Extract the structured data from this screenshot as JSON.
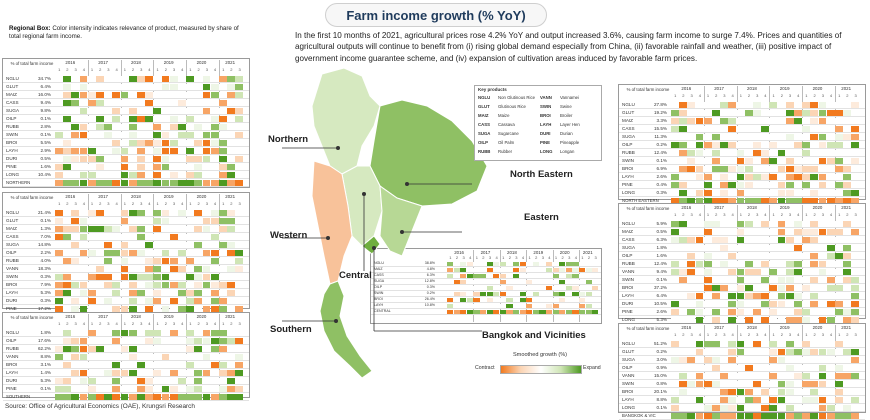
{
  "title": "Farm income growth (% YoY)",
  "intro": "In the first 10 months of 2021, agricultural prices rose 4.2% YoY and output increased 3.6%, causing farm income to surge 7.4%. Prices and quantities of agricultural outputs will continue to benefit from (i) rising global demand especially from China, (ii) favorable rainfall and weather, (iii) positive impact of government income guarantee scheme, and (iv) expansion of cultivation areas induced by favorable farm prices.",
  "regional_box_label": "Regional Box:",
  "regional_box_text": "Color intensity indicates relevance of product, measured by share of total regional farm income.",
  "share_header": "% of total farm income",
  "source": "Source: Office of Agricultural Economics (OAE), Krungsri Research",
  "years": [
    "2016",
    "2017",
    "2018",
    "2019",
    "2020",
    "2021"
  ],
  "quarters": [
    "1",
    "2",
    "3",
    "4",
    "1",
    "2",
    "3",
    "4",
    "1",
    "2",
    "3",
    "4",
    "1",
    "2",
    "3",
    "4",
    "1",
    "2",
    "3",
    "4",
    "1",
    "2",
    "3"
  ],
  "key_products": {
    "title": "Key products",
    "items": [
      {
        "code": "NGLU",
        "name": "Non Glutinous Rice"
      },
      {
        "code": "GLUT",
        "name": "Glutinous Rice"
      },
      {
        "code": "MAIZ",
        "name": "Maize"
      },
      {
        "code": "CASS",
        "name": "Cassava"
      },
      {
        "code": "SUGA",
        "name": "Sugarcane"
      },
      {
        "code": "OILP",
        "name": "Oil Palm"
      },
      {
        "code": "RUBB",
        "name": "Rubber"
      },
      {
        "code": "VANN",
        "name": "Vannamei"
      },
      {
        "code": "SWIN",
        "name": "Swine"
      },
      {
        "code": "BROI",
        "name": "Broiler"
      },
      {
        "code": "LAYH",
        "name": "Layer Hen"
      },
      {
        "code": "DURI",
        "name": "Durian"
      },
      {
        "code": "PINE",
        "name": "Pineapple"
      },
      {
        "code": "LONG",
        "name": "Longan"
      }
    ]
  },
  "map_labels": {
    "northern": "Northern",
    "western": "Western",
    "southern": "Southern",
    "central": "Central",
    "north_eastern": "North Eastern",
    "eastern": "Eastern",
    "bangkok": "Bangkok and Vicinities"
  },
  "scale": {
    "title": "Smoothed growth (%)",
    "contract": "Contract",
    "expand": "Expand"
  },
  "colors": {
    "expand_strong": "#4e9a22",
    "expand_light": "#cfe5b5",
    "contract_strong": "#f27a1f",
    "contract_light": "#fbd5b5",
    "map_selected": "#f8c29a",
    "map_green": "#8fc064",
    "map_light": "#d6e9c0"
  },
  "chart_data": [
    {
      "type": "heatmap",
      "region": "NORTHERN",
      "rows": [
        {
          "code": "NGLU",
          "share": "34.7%"
        },
        {
          "code": "GLUT",
          "share": "6.4%"
        },
        {
          "code": "MAIZ",
          "share": "16.0%"
        },
        {
          "code": "CASS",
          "share": "9.4%"
        },
        {
          "code": "SUGA",
          "share": "9.8%"
        },
        {
          "code": "OILP",
          "share": "0.1%"
        },
        {
          "code": "RUBB",
          "share": "2.8%"
        },
        {
          "code": "SWIN",
          "share": "0.1%"
        },
        {
          "code": "BROI",
          "share": "5.5%"
        },
        {
          "code": "LAYH",
          "share": "2.9%"
        },
        {
          "code": "DURI",
          "share": "0.5%"
        },
        {
          "code": "PINE",
          "share": "1.6%"
        },
        {
          "code": "LONG",
          "share": "10.4%"
        },
        {
          "code": "NORTHERN",
          "share": ""
        }
      ]
    },
    {
      "type": "heatmap",
      "region": "WESTERN",
      "rows": [
        {
          "code": "NGLU",
          "share": "21.4%"
        },
        {
          "code": "GLUT",
          "share": "0.1%"
        },
        {
          "code": "MAIZ",
          "share": "1.3%"
        },
        {
          "code": "CASS",
          "share": "7.0%"
        },
        {
          "code": "SUGA",
          "share": "14.8%"
        },
        {
          "code": "OILP",
          "share": "2.2%"
        },
        {
          "code": "RUBB",
          "share": "4.0%"
        },
        {
          "code": "VANN",
          "share": "18.3%"
        },
        {
          "code": "SWIN",
          "share": "0.3%"
        },
        {
          "code": "BROI",
          "share": "7.9%"
        },
        {
          "code": "LAYH",
          "share": "5.3%"
        },
        {
          "code": "DURI",
          "share": "0.3%"
        },
        {
          "code": "PINE",
          "share": "17.2%"
        },
        {
          "code": "WESTERN",
          "share": ""
        }
      ]
    },
    {
      "type": "heatmap",
      "region": "SOUTHERN",
      "rows": [
        {
          "code": "NGLU",
          "share": "1.8%"
        },
        {
          "code": "OILP",
          "share": "17.6%"
        },
        {
          "code": "RUBB",
          "share": "62.2%"
        },
        {
          "code": "VANN",
          "share": "8.8%"
        },
        {
          "code": "BROI",
          "share": "3.1%"
        },
        {
          "code": "LAYH",
          "share": "1.4%"
        },
        {
          "code": "DURI",
          "share": "5.3%"
        },
        {
          "code": "PINE",
          "share": "0.1%"
        },
        {
          "code": "SOUTHERN",
          "share": ""
        }
      ]
    },
    {
      "type": "heatmap",
      "region": "CENTRAL",
      "rows": [
        {
          "code": "NGLU",
          "share": "38.8%"
        },
        {
          "code": "MAIZ",
          "share": "4.8%"
        },
        {
          "code": "CASS",
          "share": "6.3%"
        },
        {
          "code": "SUGA",
          "share": "12.8%"
        },
        {
          "code": "OILP",
          "share": "0.3%"
        },
        {
          "code": "SWIN",
          "share": "0.2%"
        },
        {
          "code": "BROI",
          "share": "26.4%"
        },
        {
          "code": "LAYH",
          "share": "10.8%"
        },
        {
          "code": "CENTRAL",
          "share": ""
        }
      ]
    },
    {
      "type": "heatmap",
      "region": "NORTH EASTERN",
      "rows": [
        {
          "code": "NGLU",
          "share": "27.8%"
        },
        {
          "code": "GLUT",
          "share": "19.2%"
        },
        {
          "code": "MAIZ",
          "share": "3.3%"
        },
        {
          "code": "CASS",
          "share": "15.5%"
        },
        {
          "code": "SUGA",
          "share": "11.3%"
        },
        {
          "code": "OILP",
          "share": "0.2%"
        },
        {
          "code": "RUBB",
          "share": "12.4%"
        },
        {
          "code": "SWIN",
          "share": "0.1%"
        },
        {
          "code": "BROI",
          "share": "6.9%"
        },
        {
          "code": "LAYH",
          "share": "2.6%"
        },
        {
          "code": "PINE",
          "share": "0.4%"
        },
        {
          "code": "LONG",
          "share": "0.3%"
        },
        {
          "code": "NORTH EASTERN",
          "share": ""
        }
      ]
    },
    {
      "type": "heatmap",
      "region": "EASTERN",
      "rows": [
        {
          "code": "NGLU",
          "share": "5.9%"
        },
        {
          "code": "MAIZ",
          "share": "0.5%"
        },
        {
          "code": "CASS",
          "share": "6.3%"
        },
        {
          "code": "SUGA",
          "share": "1.8%"
        },
        {
          "code": "OILP",
          "share": "1.6%"
        },
        {
          "code": "RUBB",
          "share": "12.4%"
        },
        {
          "code": "VANN",
          "share": "9.4%"
        },
        {
          "code": "SWIN",
          "share": "0.1%"
        },
        {
          "code": "BROI",
          "share": "37.2%"
        },
        {
          "code": "LAYH",
          "share": "6.4%"
        },
        {
          "code": "DURI",
          "share": "10.5%"
        },
        {
          "code": "PINE",
          "share": "2.6%"
        },
        {
          "code": "LONG",
          "share": "5.3%"
        },
        {
          "code": "EASTERN",
          "share": ""
        }
      ]
    },
    {
      "type": "heatmap",
      "region": "BANGKOK & VIC",
      "rows": [
        {
          "code": "NGLU",
          "share": "51.2%"
        },
        {
          "code": "GLUT",
          "share": "0.2%"
        },
        {
          "code": "SUGA",
          "share": "3.0%"
        },
        {
          "code": "OILP",
          "share": "0.9%"
        },
        {
          "code": "VANN",
          "share": "15.0%"
        },
        {
          "code": "SWIN",
          "share": "0.8%"
        },
        {
          "code": "BROI",
          "share": "20.1%"
        },
        {
          "code": "LAYH",
          "share": "8.8%"
        },
        {
          "code": "LONG",
          "share": "0.1%"
        },
        {
          "code": "BANGKOK & VIC",
          "share": ""
        }
      ]
    }
  ]
}
